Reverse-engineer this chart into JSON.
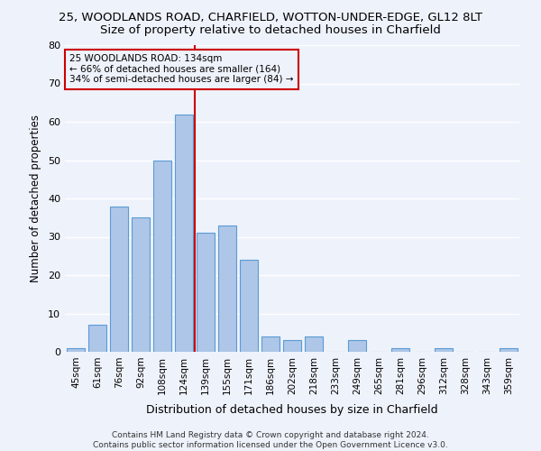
{
  "title1": "25, WOODLANDS ROAD, CHARFIELD, WOTTON-UNDER-EDGE, GL12 8LT",
  "title2": "Size of property relative to detached houses in Charfield",
  "xlabel": "Distribution of detached houses by size in Charfield",
  "ylabel": "Number of detached properties",
  "categories": [
    "45sqm",
    "61sqm",
    "76sqm",
    "92sqm",
    "108sqm",
    "124sqm",
    "139sqm",
    "155sqm",
    "171sqm",
    "186sqm",
    "202sqm",
    "218sqm",
    "233sqm",
    "249sqm",
    "265sqm",
    "281sqm",
    "296sqm",
    "312sqm",
    "328sqm",
    "343sqm",
    "359sqm"
  ],
  "values": [
    1,
    7,
    38,
    35,
    50,
    62,
    31,
    33,
    24,
    4,
    3,
    4,
    0,
    3,
    0,
    1,
    0,
    1,
    0,
    0,
    1
  ],
  "bar_color": "#aec6e8",
  "bar_edge_color": "#5b9bd5",
  "vline_color": "#cc0000",
  "annotation_text": "25 WOODLANDS ROAD: 134sqm\n← 66% of detached houses are smaller (164)\n34% of semi-detached houses are larger (84) →",
  "annotation_box_color": "#cc0000",
  "ylim": [
    0,
    80
  ],
  "yticks": [
    0,
    10,
    20,
    30,
    40,
    50,
    60,
    70,
    80
  ],
  "footer": "Contains HM Land Registry data © Crown copyright and database right 2024.\nContains public sector information licensed under the Open Government Licence v3.0.",
  "background_color": "#eef2fb",
  "grid_color": "#ffffff",
  "title1_fontsize": 9.5,
  "title2_fontsize": 9.5,
  "xlabel_fontsize": 9,
  "ylabel_fontsize": 8.5,
  "footer_fontsize": 6.5
}
